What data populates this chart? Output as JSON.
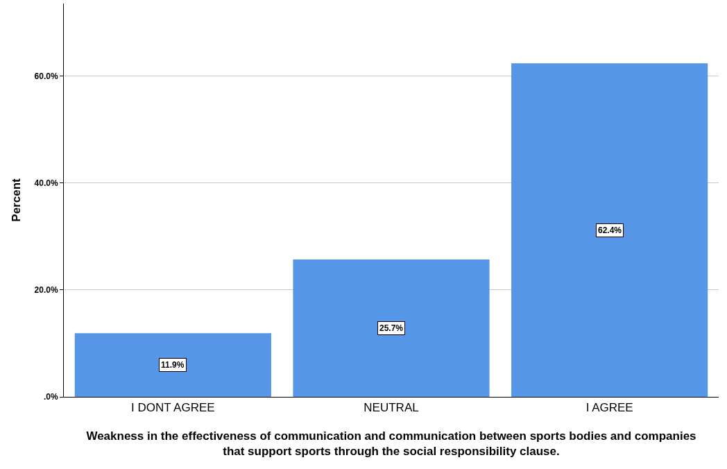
{
  "chart_data": {
    "type": "bar",
    "xlabel": "Weakness in the effectiveness of communication and communication between sports bodies and companies that support sports through the social responsibility clause.",
    "ylabel": "Percent",
    "categories": [
      "I DONT AGREE",
      "NEUTRAL",
      "I AGREE"
    ],
    "values": [
      11.9,
      25.7,
      62.4
    ],
    "value_labels": [
      "11.9%",
      "25.7%",
      "62.4%"
    ],
    "color": "#5596e6",
    "ylim": [
      0,
      73.6
    ],
    "yticks": [
      {
        "value": 0,
        "label": ".0%"
      },
      {
        "value": 20,
        "label": "20.0%"
      },
      {
        "value": 40,
        "label": "40.0%"
      },
      {
        "value": 60,
        "label": "60.0%"
      }
    ],
    "grid": "y"
  }
}
